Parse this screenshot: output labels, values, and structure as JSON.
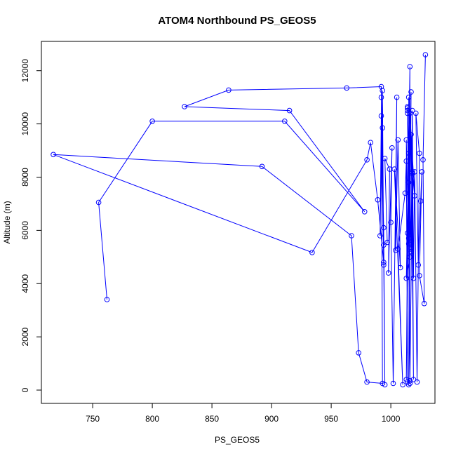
{
  "chart_data": {
    "type": "line",
    "title": "ATOM4 Northbound PS_GEOS5",
    "xlabel": "PS_GEOS5",
    "ylabel": "Altitude (m)",
    "xlim": [
      707,
      1037
    ],
    "ylim": [
      -500,
      13100
    ],
    "xticks": [
      750,
      800,
      850,
      900,
      950,
      1000
    ],
    "yticks": [
      0,
      2000,
      4000,
      6000,
      8000,
      10000,
      12000
    ],
    "grid": false,
    "legend": "none",
    "series_color": "#0000ff",
    "series": [
      {
        "x": [
          762,
          755,
          800,
          911,
          978,
          915,
          827,
          864,
          963,
          992,
          993,
          980,
          973,
          967,
          892,
          717,
          934,
          980,
          983,
          989,
          994,
          993,
          995,
          994,
          992,
          991,
          993,
          994,
          992,
          994,
          997,
          995,
          999,
          998,
          1001,
          1000,
          1002,
          1005,
          1004,
          1006,
          1008,
          1003,
          1010,
          1006,
          1012,
          1013,
          1014,
          1013,
          1015,
          1014,
          1016,
          1014,
          1017,
          1015,
          1016,
          1018,
          1017,
          1019,
          1018,
          1020,
          1016,
          1015,
          1017,
          1015,
          1016,
          1014,
          1013,
          1015,
          1014,
          1016,
          1013,
          1015,
          1014,
          1017,
          1018,
          1019,
          1020,
          1022,
          1024,
          1021,
          1023,
          1025,
          1026,
          1024,
          1028,
          1027,
          1029
        ],
        "y": [
          3400,
          7050,
          10100,
          10100,
          6700,
          10500,
          10650,
          11270,
          11350,
          11400,
          250,
          300,
          1400,
          5800,
          8400,
          8850,
          5170,
          8650,
          9300,
          7150,
          4800,
          9850,
          200,
          6100,
          10300,
          5800,
          11250,
          4700,
          11000,
          5450,
          5550,
          8700,
          8300,
          4400,
          9100,
          6300,
          250,
          11000,
          5250,
          9400,
          4600,
          8300,
          200,
          5300,
          7400,
          8600,
          300,
          9400,
          5500,
          10650,
          350,
          10400,
          5200,
          11000,
          250,
          8200,
          9600,
          400,
          8150,
          7300,
          10400,
          5700,
          11200,
          200,
          12150,
          5900,
          400,
          7800,
          10500,
          5000,
          4200,
          8900,
          10600,
          5300,
          10500,
          4200,
          8200,
          300,
          8900,
          10400,
          4700,
          7100,
          8200,
          4300,
          3250,
          8650,
          12600
        ]
      }
    ]
  }
}
